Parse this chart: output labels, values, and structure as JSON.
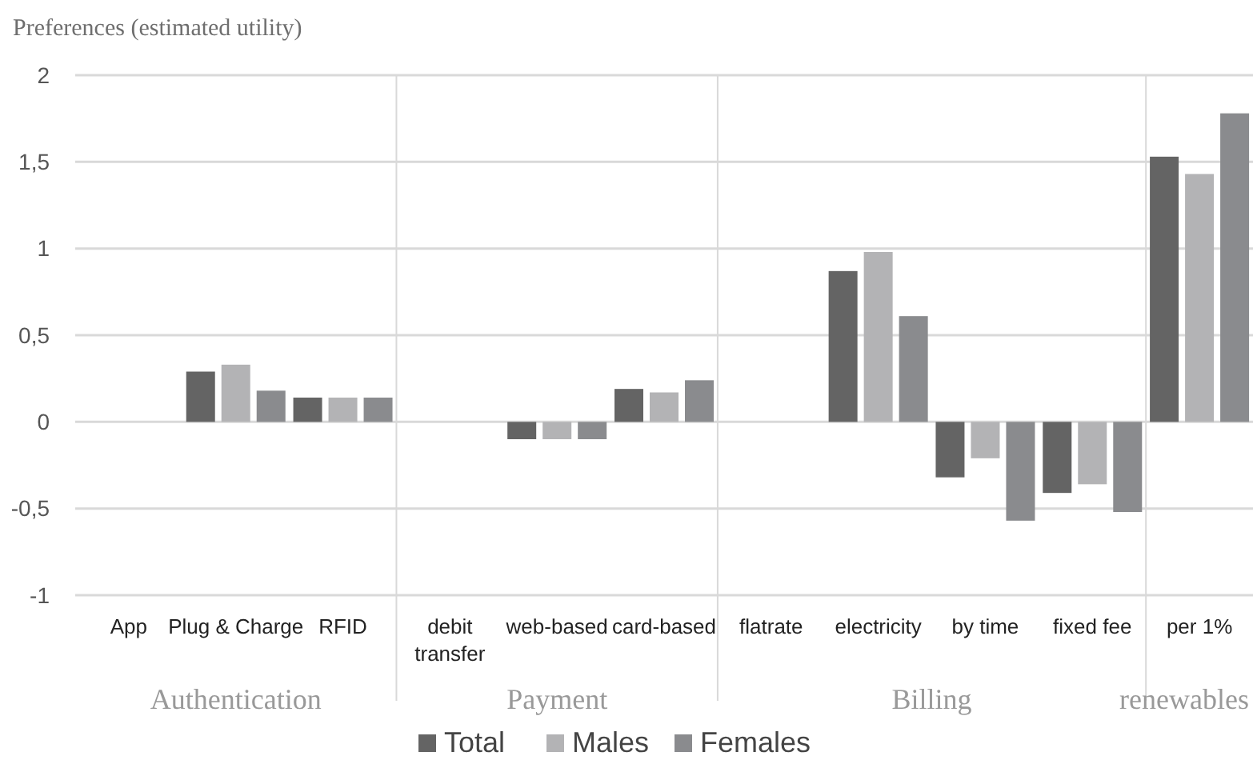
{
  "chart_data": {
    "type": "bar",
    "ylabel": "Preferences (estimated utility)",
    "categories": [
      "App",
      "Plug & Charge",
      "RFID",
      "debit transfer",
      "web-based",
      "card-based",
      "flatrate",
      "electricity",
      "by time",
      "fixed fee",
      "per 1%"
    ],
    "series": [
      {
        "name": "Total",
        "color": "#646464",
        "values": [
          0,
          0.29,
          0.14,
          0,
          -0.1,
          0.19,
          0,
          0.87,
          -0.32,
          -0.41,
          1.53
        ]
      },
      {
        "name": "Males",
        "color": "#b3b3b5",
        "values": [
          0,
          0.33,
          0.14,
          0,
          -0.1,
          0.17,
          0,
          0.98,
          -0.21,
          -0.36,
          1.43
        ]
      },
      {
        "name": "Females",
        "color": "#8a8b8e",
        "values": [
          0,
          0.18,
          0.14,
          0,
          -0.1,
          0.24,
          0,
          0.61,
          -0.57,
          -0.52,
          1.78
        ]
      }
    ],
    "ylim": [
      -1,
      2
    ],
    "yticks": [
      {
        "value": -1,
        "label": "-1"
      },
      {
        "value": -0.5,
        "label": "-0,5"
      },
      {
        "value": 0,
        "label": "0"
      },
      {
        "value": 0.5,
        "label": "0,5"
      },
      {
        "value": 1,
        "label": "1"
      },
      {
        "value": 1.5,
        "label": "1,5"
      },
      {
        "value": 2,
        "label": "2"
      }
    ],
    "grid": "y",
    "legend": "bottom",
    "annotations": [
      "Authentication",
      "Payment",
      "Billing",
      "renewables"
    ]
  }
}
